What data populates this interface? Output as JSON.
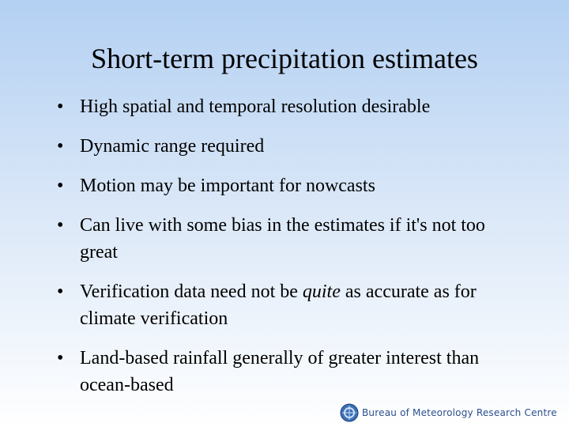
{
  "title": "Short-term precipitation estimates",
  "bullets": [
    [
      "High spatial and temporal resolution desirable"
    ],
    [
      "Dynamic range required"
    ],
    [
      "Motion may be important for nowcasts"
    ],
    [
      "Can live with some bias in the estimates if it's not too great"
    ],
    [
      "Verification data need not be ",
      "quite",
      " as accurate as for climate verification"
    ],
    [
      "Land-based rainfall generally of greater interest than ocean-based"
    ]
  ],
  "footer": {
    "logo_text": "Bureau of Meteorology Research Centre"
  }
}
